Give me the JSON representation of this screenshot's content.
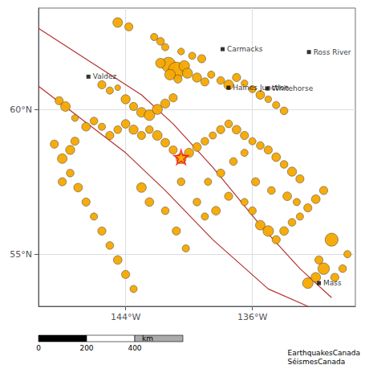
{
  "chart_data": {
    "type": "scatter",
    "xlim": [
      -149.5,
      -129.5
    ],
    "ylim": [
      53.2,
      63.5
    ],
    "xticks": [
      {
        "value": -144,
        "label": "144°W"
      },
      {
        "value": -136,
        "label": "136°W"
      }
    ],
    "yticks": [
      {
        "value": 55,
        "label": "55°N"
      },
      {
        "value": 60,
        "label": "60°N"
      }
    ],
    "grid": true,
    "annotations": [
      "0",
      "200",
      "400",
      "km",
      "EarthquakesCanada\nSéismesCanada"
    ],
    "series": [
      {
        "type": "line",
        "color": "#b83030",
        "x": [
          -149.5,
          -143.0,
          -141.0,
          -138.5,
          -135.5,
          -133.0,
          -131.0
        ],
        "values": [
          62.8,
          60.5,
          59.5,
          58.0,
          56.0,
          54.5,
          53.5
        ]
      },
      {
        "type": "line",
        "color": "#b83030",
        "x": [
          -149.5,
          -144.0,
          -141.5,
          -138.5,
          -135.0,
          -132.5
        ],
        "values": [
          60.8,
          58.5,
          57.2,
          55.5,
          53.8,
          53.2
        ]
      },
      {
        "type": "scatter",
        "marker": "circle",
        "color": "#f5a800",
        "x": [
          -144.5,
          -143.8,
          -142.2,
          -141.8,
          -141.5,
          -140.5,
          -139.8,
          -139.2,
          -141.3,
          -140.8,
          -140.3,
          -141.8,
          -141.2,
          -140.7,
          -140.1,
          -139.5,
          -139.0,
          -138.6,
          -138.0,
          -137.5,
          -137.0,
          -136.5,
          -136.0,
          -135.5,
          -135.0,
          -134.5,
          -134.0,
          -145.5,
          -145.0,
          -144.5,
          -144.0,
          -143.5,
          -143.0,
          -142.5,
          -142.0,
          -141.5,
          -141.0,
          -148.2,
          -147.8,
          -147.2,
          -146.5,
          -146.0,
          -145.5,
          -145.0,
          -144.5,
          -144.0,
          -143.5,
          -143.0,
          -142.5,
          -142.0,
          -141.5,
          -141.0,
          -140.5,
          -140.0,
          -139.5,
          -139.0,
          -138.5,
          -138.0,
          -137.5,
          -137.0,
          -136.5,
          -136.0,
          -135.5,
          -135.0,
          -134.5,
          -134.0,
          -133.5,
          -133.0,
          -148.5,
          -148.0,
          -147.5,
          -147.0,
          -146.5,
          -146.0,
          -145.5,
          -145.0,
          -144.5,
          -144.0,
          -143.5,
          -147.2,
          -147.5,
          -148.0,
          -140.5,
          -139.5,
          -139.0,
          -138.3,
          -137.5,
          -136.5,
          -136.0,
          -135.5,
          -135.0,
          -134.5,
          -134.0,
          -133.5,
          -133.0,
          -132.5,
          -132.0,
          -131.5,
          -131.0,
          -131.5,
          -132.0,
          -132.5,
          -131.8,
          -130.8,
          -130.3,
          -130.0,
          -143.0,
          -142.5,
          -141.5,
          -140.8,
          -140.2,
          -138.8,
          -138.0,
          -137.2,
          -136.5,
          -135.8,
          -134.8,
          -133.8,
          -133.2
        ],
        "values": [
          63.0,
          62.85,
          62.5,
          62.35,
          62.15,
          62.0,
          61.85,
          61.75,
          61.55,
          61.35,
          61.5,
          61.6,
          61.2,
          61.05,
          61.25,
          61.1,
          60.95,
          61.2,
          61.0,
          60.85,
          61.1,
          60.9,
          60.7,
          60.5,
          60.35,
          60.15,
          59.95,
          60.85,
          60.65,
          60.75,
          60.35,
          60.1,
          59.9,
          59.8,
          60.0,
          60.2,
          60.4,
          60.3,
          60.1,
          59.7,
          59.4,
          59.6,
          59.4,
          59.1,
          59.3,
          59.5,
          59.3,
          59.1,
          59.3,
          59.1,
          58.85,
          58.6,
          58.3,
          58.5,
          58.7,
          58.9,
          59.1,
          59.3,
          59.5,
          59.3,
          59.1,
          58.9,
          58.75,
          58.6,
          58.35,
          58.1,
          57.85,
          57.6,
          58.8,
          58.3,
          57.8,
          57.3,
          56.8,
          56.3,
          55.8,
          55.3,
          54.8,
          54.3,
          53.8,
          58.9,
          58.6,
          57.5,
          57.5,
          56.8,
          56.3,
          56.5,
          57.0,
          56.8,
          56.5,
          56.0,
          55.8,
          55.5,
          55.8,
          56.1,
          56.3,
          56.6,
          56.9,
          57.2,
          55.5,
          54.5,
          54.2,
          54.0,
          54.8,
          54.2,
          54.5,
          55.0,
          57.3,
          56.8,
          56.5,
          55.8,
          55.2,
          57.5,
          57.8,
          58.2,
          58.5,
          57.5,
          57.2,
          57.0,
          56.8
        ],
        "mag": [
          5.8,
          5.5,
          5.3,
          5.4,
          5.3,
          5.2,
          5.3,
          5.5,
          6.8,
          7.2,
          6.0,
          5.8,
          6.0,
          5.5,
          5.9,
          5.7,
          5.5,
          5.3,
          5.4,
          5.8,
          5.5,
          5.2,
          5.3,
          5.6,
          5.2,
          5.3,
          5.4,
          5.5,
          5.3,
          5.0,
          5.7,
          5.5,
          5.8,
          6.0,
          5.9,
          5.7,
          5.5,
          5.5,
          5.8,
          5.2,
          5.6,
          5.4,
          5.3,
          5.5,
          5.4,
          5.6,
          5.7,
          5.5,
          5.4,
          5.8,
          5.6,
          5.5,
          5.9,
          5.7,
          5.6,
          5.4,
          5.3,
          5.5,
          5.4,
          5.6,
          5.5,
          5.3,
          5.4,
          5.5,
          5.6,
          5.4,
          5.7,
          5.5,
          5.5,
          5.8,
          5.4,
          5.6,
          5.5,
          5.3,
          5.5,
          5.4,
          5.6,
          5.5,
          5.3,
          5.5,
          5.7,
          5.5,
          5.4,
          5.4,
          5.3,
          5.6,
          5.5,
          5.3,
          5.4,
          5.8,
          6.0,
          5.5,
          5.6,
          5.4,
          5.3,
          5.5,
          5.6,
          5.5,
          6.5,
          6.2,
          5.8,
          6.0,
          5.5,
          5.5,
          5.4,
          5.3,
          5.8,
          5.6,
          5.4,
          5.5,
          5.3,
          5.3,
          5.5,
          5.4,
          5.3,
          5.5,
          5.4,
          5.6,
          5.3
        ]
      },
      {
        "type": "scatter",
        "marker": "star",
        "color": "red",
        "x": [
          -140.5
        ],
        "values": [
          58.35
        ]
      },
      {
        "type": "scatter",
        "marker": "square",
        "color": "black",
        "data_labels": true,
        "x": [
          -146.35,
          -137.88,
          -132.43,
          -137.51,
          -135.05,
          -131.8
        ],
        "values": [
          61.13,
          62.08,
          61.98,
          60.75,
          60.72,
          54.0
        ],
        "labels": [
          "Valdez",
          "Carmacks",
          "Ross River",
          "Haines Junction",
          "Whitehorse",
          "Mass"
        ]
      }
    ]
  }
}
